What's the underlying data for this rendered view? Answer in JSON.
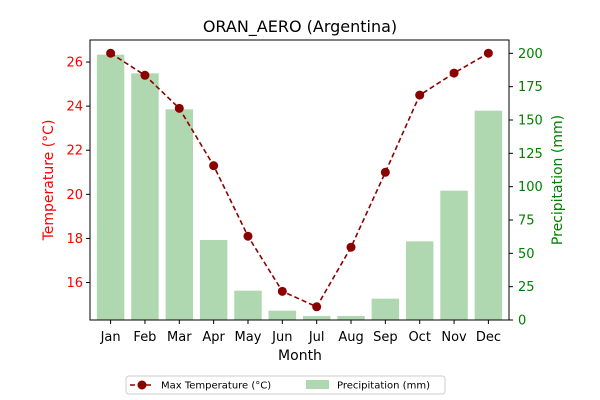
{
  "chart_data": {
    "type": "bar",
    "title": "ORAN_AERO (Argentina)",
    "xlabel": "Month",
    "ylabel_left": "Temperature (°C)",
    "ylabel_right": "Precipitation (mm)",
    "categories": [
      "Jan",
      "Feb",
      "Mar",
      "Apr",
      "May",
      "Jun",
      "Jul",
      "Aug",
      "Sep",
      "Oct",
      "Nov",
      "Dec"
    ],
    "series": [
      {
        "name": "Max Temperature (°C)",
        "kind": "line",
        "axis": "left",
        "color": "#8b0000",
        "style": "dashed",
        "marker": "circle",
        "values": [
          26.4,
          25.4,
          23.9,
          21.3,
          18.1,
          15.6,
          14.9,
          17.6,
          21.0,
          24.5,
          25.5,
          26.4
        ]
      },
      {
        "name": "Precipitation (mm)",
        "kind": "bar",
        "axis": "right",
        "color": "#b0d8b0",
        "values": [
          199,
          185,
          158,
          60,
          22,
          7,
          3,
          3,
          16,
          59,
          97,
          157
        ]
      }
    ],
    "ylim_left": [
      14.3,
      27.0
    ],
    "yticks_left": [
      16,
      18,
      20,
      22,
      24,
      26
    ],
    "ylim_right": [
      0,
      210
    ],
    "yticks_right": [
      0,
      25,
      50,
      75,
      100,
      125,
      150,
      175,
      200
    ],
    "left_axis_color": "#ff0000",
    "right_axis_color": "#008000",
    "grid": false,
    "legend": {
      "placement": "bottom-center",
      "columns": 2,
      "entries": [
        "Max Temperature (°C)",
        "Precipitation (mm)"
      ]
    }
  }
}
